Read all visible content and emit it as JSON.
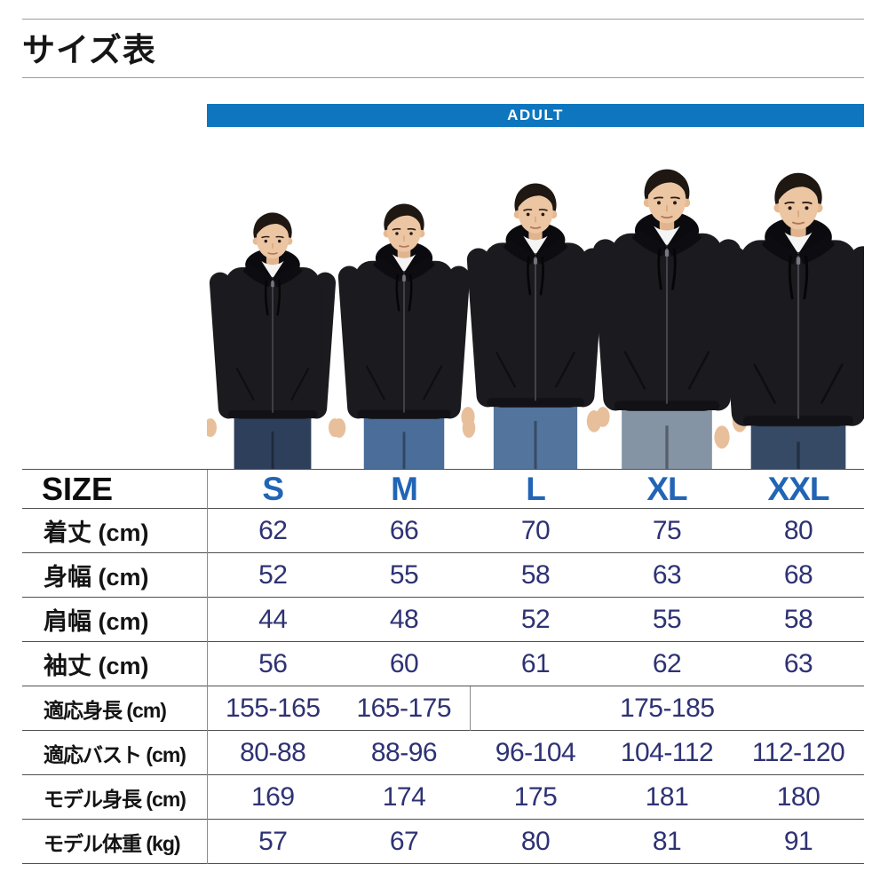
{
  "page": {
    "title": "サイズ表"
  },
  "banner": {
    "label": "ADULT"
  },
  "colors": {
    "banner_bg": "#0d76bf",
    "banner_text": "#ffffff",
    "column_header": "#2264b6",
    "value_text": "#2e3273",
    "label_text": "#141414",
    "table_line": "#4f4f4f",
    "inner_line": "#8a8a8a",
    "title_rule": "#9c9c9c",
    "page_bg": "#ffffff"
  },
  "photo": {
    "models": [
      {
        "size": "S"
      },
      {
        "size": "M"
      },
      {
        "size": "L"
      },
      {
        "size": "XL"
      },
      {
        "size": "XXL"
      }
    ]
  },
  "table": {
    "corner_label": "SIZE",
    "columns": [
      "S",
      "M",
      "L",
      "XL",
      "XXL"
    ],
    "rows": [
      {
        "label": "着丈 (cm)",
        "cells": [
          {
            "v": "62"
          },
          {
            "v": "66"
          },
          {
            "v": "70"
          },
          {
            "v": "75"
          },
          {
            "v": "80"
          }
        ]
      },
      {
        "label": "身幅 (cm)",
        "cells": [
          {
            "v": "52"
          },
          {
            "v": "55"
          },
          {
            "v": "58"
          },
          {
            "v": "63"
          },
          {
            "v": "68"
          }
        ]
      },
      {
        "label": "肩幅 (cm)",
        "cells": [
          {
            "v": "44"
          },
          {
            "v": "48"
          },
          {
            "v": "52"
          },
          {
            "v": "55"
          },
          {
            "v": "58"
          }
        ]
      },
      {
        "label": "袖丈 (cm)",
        "cells": [
          {
            "v": "56"
          },
          {
            "v": "60"
          },
          {
            "v": "61"
          },
          {
            "v": "62"
          },
          {
            "v": "63"
          }
        ]
      },
      {
        "label": "適応身長 (cm)",
        "cells": [
          {
            "v": "155-165"
          },
          {
            "v": "165-175"
          },
          {
            "v": "175-185",
            "span": 3
          }
        ]
      },
      {
        "label": "適応バスト (cm)",
        "cells": [
          {
            "v": "80-88"
          },
          {
            "v": "88-96"
          },
          {
            "v": "96-104"
          },
          {
            "v": "104-112"
          },
          {
            "v": "112-120"
          }
        ]
      },
      {
        "label": "モデル身長 (cm)",
        "cells": [
          {
            "v": "169"
          },
          {
            "v": "174"
          },
          {
            "v": "175"
          },
          {
            "v": "181"
          },
          {
            "v": "180"
          }
        ]
      },
      {
        "label": "モデル体重 (kg)",
        "cells": [
          {
            "v": "57"
          },
          {
            "v": "67"
          },
          {
            "v": "80"
          },
          {
            "v": "81"
          },
          {
            "v": "91"
          }
        ]
      }
    ]
  },
  "chart_data": {
    "type": "table",
    "title": "サイズ表",
    "group_header": "ADULT",
    "columns": [
      "S",
      "M",
      "L",
      "XL",
      "XXL"
    ],
    "rows": [
      {
        "label": "着丈 (cm)",
        "values": [
          62,
          66,
          70,
          75,
          80
        ]
      },
      {
        "label": "身幅 (cm)",
        "values": [
          52,
          55,
          58,
          63,
          68
        ]
      },
      {
        "label": "肩幅 (cm)",
        "values": [
          44,
          48,
          52,
          55,
          58
        ]
      },
      {
        "label": "袖丈 (cm)",
        "values": [
          56,
          60,
          61,
          62,
          63
        ]
      },
      {
        "label": "適応身長 (cm)",
        "values": [
          "155-165",
          "165-175",
          "175-185",
          "175-185",
          "175-185"
        ],
        "note": "175-185 is a merged cell spanning L, XL and XXL"
      },
      {
        "label": "適応バスト (cm)",
        "values": [
          "80-88",
          "88-96",
          "96-104",
          "104-112",
          "112-120"
        ]
      },
      {
        "label": "モデル身長 (cm)",
        "values": [
          169,
          174,
          175,
          181,
          180
        ]
      },
      {
        "label": "モデル体重 (kg)",
        "values": [
          57,
          67,
          80,
          81,
          91
        ]
      }
    ]
  }
}
